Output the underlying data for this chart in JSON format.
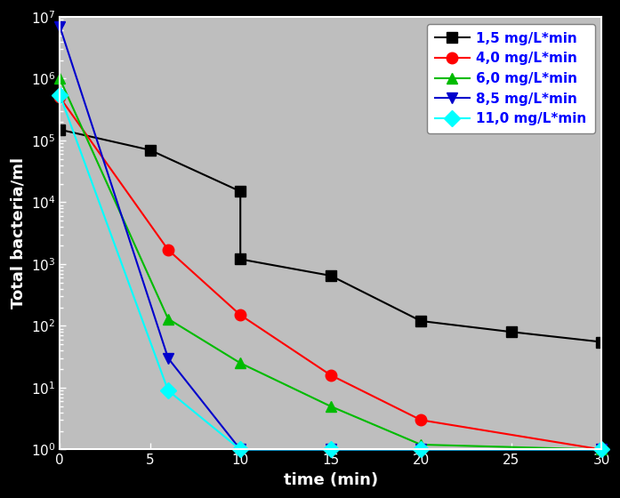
{
  "series": [
    {
      "label": "1,5 mg/L*min",
      "color": "#000000",
      "marker": "s",
      "linestyle": "-",
      "x": [
        0,
        5,
        10,
        10,
        15,
        20,
        25,
        30
      ],
      "y": [
        150000.0,
        70000.0,
        15000.0,
        1200,
        650,
        120,
        80,
        55
      ]
    },
    {
      "label": "4,0 mg/L*min",
      "color": "#ff0000",
      "marker": "o",
      "linestyle": "-",
      "x": [
        0,
        6,
        10,
        15,
        20,
        30
      ],
      "y": [
        500000.0,
        1700,
        150,
        16,
        3,
        1
      ]
    },
    {
      "label": "6,0 mg/L*min",
      "color": "#00bb00",
      "marker": "^",
      "linestyle": "-",
      "x": [
        0,
        6,
        10,
        15,
        20,
        30
      ],
      "y": [
        1000000.0,
        130,
        25,
        5,
        1.2,
        1
      ]
    },
    {
      "label": "8,5 mg/L*min",
      "color": "#0000cc",
      "marker": "v",
      "linestyle": "-",
      "x": [
        0,
        6,
        10,
        15,
        20,
        30
      ],
      "y": [
        7000000.0,
        30,
        1,
        1,
        1,
        1
      ]
    },
    {
      "label": "11,0 mg/L*min",
      "color": "#00ffff",
      "marker": "D",
      "linestyle": "-",
      "x": [
        0,
        6,
        10,
        15,
        20,
        30
      ],
      "y": [
        550000.0,
        9,
        1,
        1,
        1,
        1
      ]
    }
  ],
  "xlabel": "time (min)",
  "ylabel": "Total bacteria/ml",
  "xlim": [
    0,
    30
  ],
  "ylim": [
    1,
    10000000.0
  ],
  "bg_color": "#bebebe",
  "fig_color": "#000000",
  "legend_text_color": "#0000ff",
  "markersize": 9,
  "linewidth": 1.5
}
